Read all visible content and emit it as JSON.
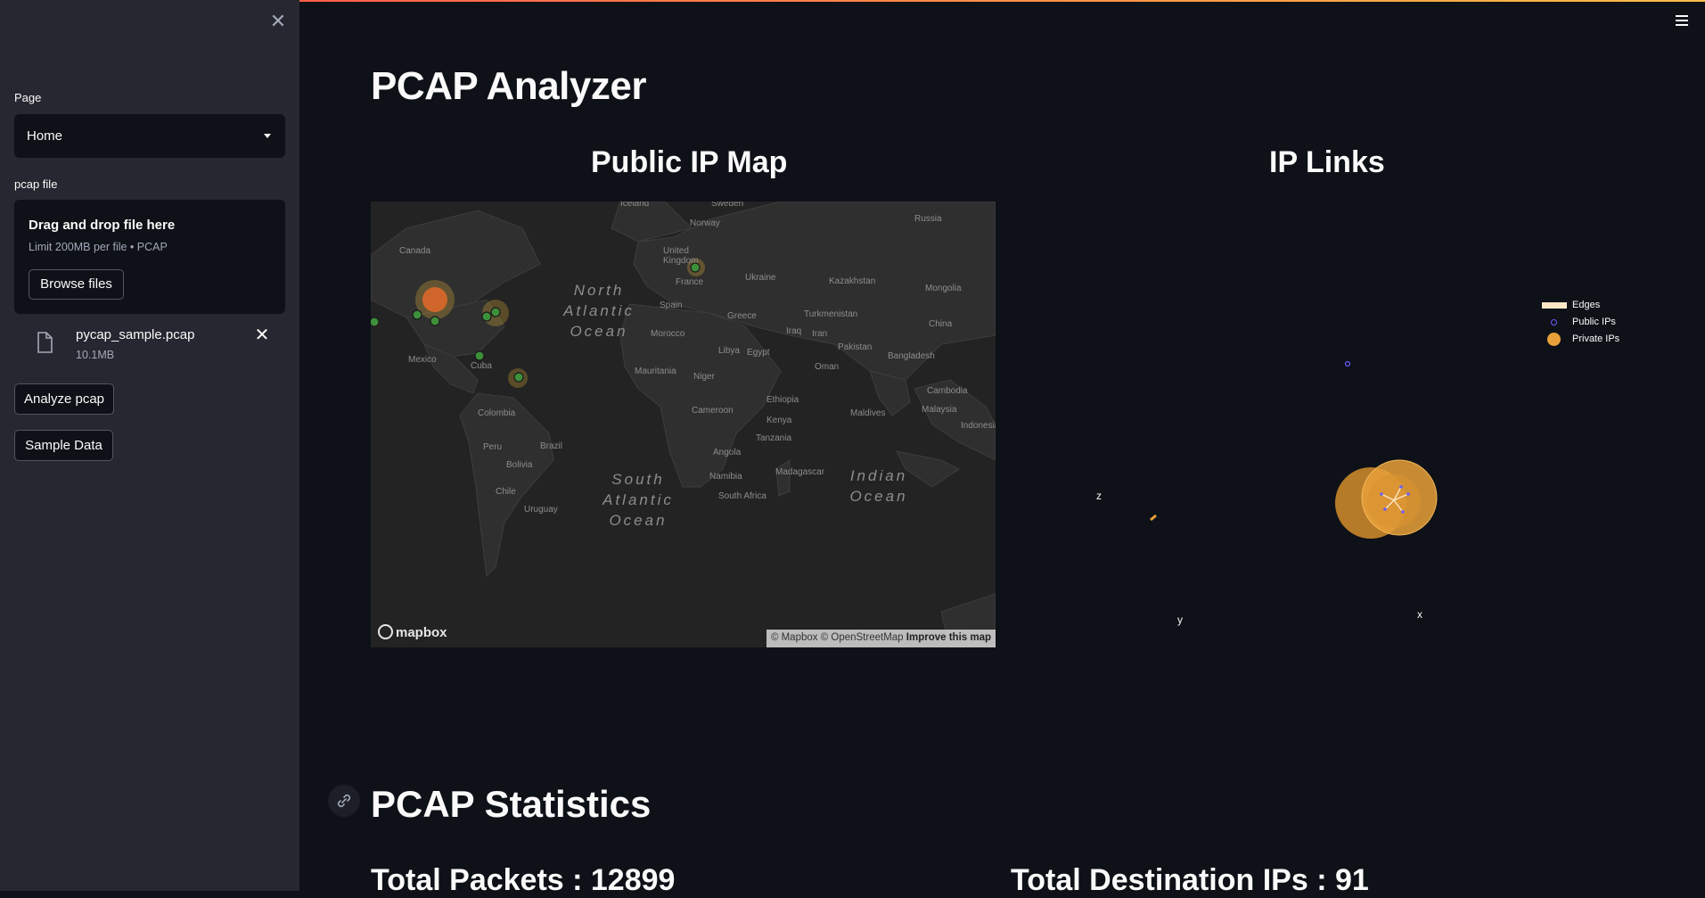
{
  "sidebar": {
    "page_label": "Page",
    "page_value": "Home",
    "file_label": "pcap file",
    "dropzone_title": "Drag and drop file here",
    "dropzone_hint": "Limit 200MB per file • PCAP",
    "browse_label": "Browse files",
    "file_name": "pycap_sample.pcap",
    "file_size": "10.1MB",
    "analyze_label": "Analyze pcap",
    "sample_label": "Sample Data"
  },
  "main": {
    "title": "PCAP Analyzer",
    "map_title": "Public IP Map",
    "links_title": "IP Links",
    "stats_title": "PCAP Statistics",
    "total_packets": "Total Packets : 12899",
    "total_dest_ips": "Total Destination IPs : 91"
  },
  "map": {
    "countries": [
      "Iceland",
      "Sweden",
      "Norway",
      "Russia",
      "Canada",
      "United Kingdom",
      "France",
      "Ukraine",
      "Kazakhstan",
      "Mongolia",
      "Spain",
      "Turkmenistan",
      "Greece",
      "China",
      "Morocco",
      "Libya",
      "Egypt",
      "Iraq",
      "Iran",
      "Pakistan",
      "Bangladesh",
      "Mexico",
      "Cuba",
      "Oman",
      "Mauritania",
      "Niger",
      "Ethiopia",
      "Maldives",
      "Cambodia",
      "Malaysia",
      "Indonesia",
      "Colombia",
      "Cameroon",
      "Kenya",
      "Tanzania",
      "Peru",
      "Brazil",
      "Bolivia",
      "Angola",
      "Namibia",
      "Madagascar",
      "Chile",
      "Uruguay",
      "South Africa"
    ],
    "oceans": [
      "North Atlantic Ocean",
      "South Atlantic Ocean",
      "Indian Ocean"
    ],
    "logo": "mapbox",
    "attribution": "© Mapbox © OpenStreetMap",
    "improve": "Improve this map"
  },
  "graph": {
    "legend": [
      "Edges",
      "Public IPs",
      "Private IPs"
    ],
    "axes": [
      "z",
      "y",
      "x"
    ],
    "colors": {
      "edges": "#fde6c6",
      "public": "#6b5cff",
      "private": "#e8a13a"
    }
  },
  "icons": {
    "close": "close-icon",
    "menu": "hamburger-menu-icon",
    "file": "file-icon",
    "link": "link-icon"
  }
}
